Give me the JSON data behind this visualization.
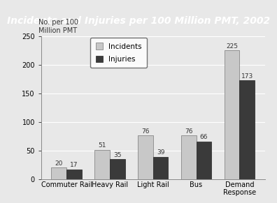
{
  "title": "Incidents and Injuries per 100 Million PMT, 2002",
  "ylabel_line1": "No. per 100",
  "ylabel_line2": "Million PMT",
  "categories": [
    "Commuter Rail",
    "Heavy Rail",
    "Light Rail",
    "Bus",
    "Demand\nResponse"
  ],
  "incidents": [
    20,
    51,
    76,
    76,
    225
  ],
  "injuries": [
    17,
    35,
    39,
    66,
    173
  ],
  "ylim": [
    0,
    250
  ],
  "yticks": [
    0,
    50,
    100,
    150,
    200,
    250
  ],
  "incidents_color": "#c8c8c8",
  "injuries_color": "#3a3a3a",
  "title_bg_color": "#1a1a1a",
  "title_text_color": "#ffffff",
  "plot_bg_color": "#e8e8e8",
  "fig_bg_color": "#e8e8e8",
  "bar_width": 0.35,
  "legend_labels": [
    "Incidents",
    "Injuries"
  ],
  "value_fontsize": 6.5,
  "tick_fontsize": 7,
  "title_fontsize": 10,
  "ylabel_fontsize": 7
}
